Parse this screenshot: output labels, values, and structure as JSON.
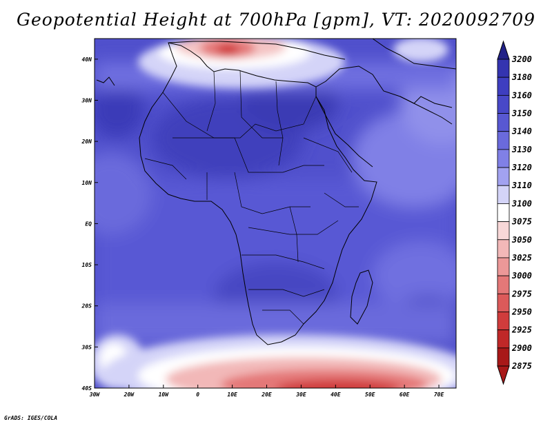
{
  "title": "Geopotential Height at 700hPa [gpm], VT: 2020092709",
  "footer": "GrADS: IGES/COLA",
  "map": {
    "lat_labels": [
      "40N",
      "30N",
      "20N",
      "10N",
      "EQ",
      "10S",
      "20S",
      "30S",
      "40S"
    ],
    "lon_labels": [
      "30W",
      "20W",
      "10W",
      "0",
      "10E",
      "20E",
      "30E",
      "40E",
      "50E",
      "60E",
      "70E"
    ],
    "lat_range": [
      -40,
      45
    ],
    "lon_range": [
      -30,
      75
    ]
  },
  "colorbar": {
    "levels": [
      "3200",
      "3180",
      "3160",
      "3150",
      "3140",
      "3130",
      "3120",
      "3110",
      "3100",
      "3075",
      "3050",
      "3025",
      "3000",
      "2975",
      "2950",
      "2925",
      "2900",
      "2875"
    ],
    "colors": [
      "#2a2a9e",
      "#3434b0",
      "#3e3ec0",
      "#4848c8",
      "#5858d2",
      "#6a6adc",
      "#8080e6",
      "#a2a2f0",
      "#d4d4f8",
      "#ffffff",
      "#f8d8d8",
      "#f2b8b8",
      "#ec9898",
      "#e47878",
      "#dc5a5a",
      "#d03c3c",
      "#c02828",
      "#a81818"
    ],
    "top_arrow_color": "#222288",
    "bottom_arrow_color": "#a81818"
  }
}
